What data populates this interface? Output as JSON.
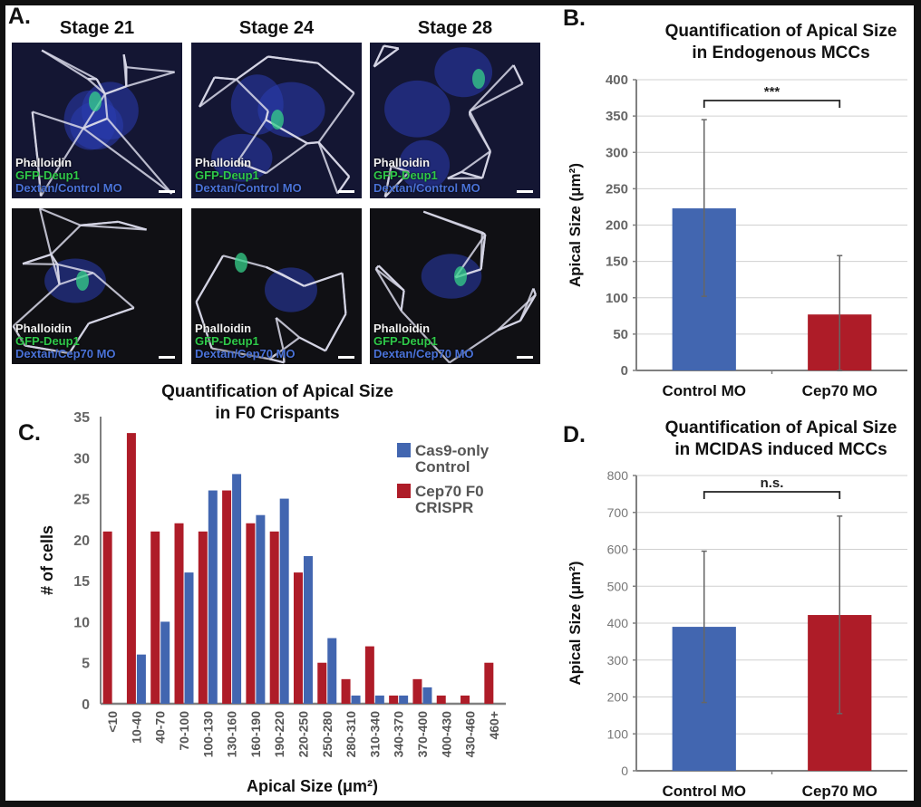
{
  "panels": {
    "A": {
      "letter": "A.",
      "stages": [
        "Stage 21",
        "Stage 24",
        "Stage 28"
      ],
      "rows": [
        {
          "condition": "Control",
          "labels": [
            "Phalloidin",
            "GFP-Deup1",
            "Dextan/Control MO"
          ]
        },
        {
          "condition": "Cep70",
          "labels": [
            "Phalloidin",
            "GFP-Deup1",
            "Dextan/Cep70 MO"
          ]
        }
      ],
      "channel_colors": {
        "phalloidin": "#f2f2f2",
        "gfp": "#2fc94a",
        "dextran": "#4a72d8"
      }
    },
    "B": {
      "letter": "B."
    },
    "C": {
      "letter": "C."
    },
    "D": {
      "letter": "D."
    }
  },
  "colors": {
    "control": "#4266b0",
    "cep70": "#ae1c28",
    "grid": "#d0d0d0",
    "axis": "#808080"
  },
  "chart_data": [
    {
      "id": "B",
      "type": "bar",
      "title": [
        "Quantification of Apical Size",
        "in Endogenous MCCs"
      ],
      "xlabel": "",
      "ylabel": "Apical Size (μm²)",
      "categories": [
        "Control MO",
        "Cep70 MO"
      ],
      "values": [
        223,
        77
      ],
      "error_upper": [
        345,
        158
      ],
      "error_lower": [
        102,
        0
      ],
      "ylim": [
        0,
        400
      ],
      "yticks": [
        0,
        50,
        100,
        150,
        200,
        250,
        300,
        350,
        400
      ],
      "grid": true,
      "significance": {
        "label": "***",
        "between": [
          "Control MO",
          "Cep70 MO"
        ]
      }
    },
    {
      "id": "C",
      "type": "bar",
      "title": [
        "Quantification of Apical Size",
        "in F0 Crispants"
      ],
      "xlabel": "Apical Size (μm²)",
      "ylabel": "# of cells",
      "categories": [
        "<10",
        "10-40",
        "40-70",
        "70-100",
        "100-130",
        "130-160",
        "160-190",
        "190-220",
        "220-250",
        "250-280",
        "280-310",
        "310-340",
        "340-370",
        "370-400",
        "400-430",
        "430-460",
        "460+"
      ],
      "series": [
        {
          "name": "Cep70 F0 CRISPR",
          "legend": [
            "Cep70 F0",
            "CRISPR"
          ],
          "color": "#ae1c28",
          "values": [
            21,
            33,
            21,
            22,
            21,
            26,
            22,
            21,
            16,
            5,
            3,
            7,
            1,
            3,
            1,
            1,
            5
          ]
        },
        {
          "name": "Cas9-only Control",
          "legend": [
            "Cas9-only",
            "Control"
          ],
          "color": "#4266b0",
          "values": [
            0,
            6,
            10,
            16,
            26,
            28,
            23,
            25,
            18,
            8,
            1,
            1,
            1,
            2,
            0,
            0,
            0
          ]
        }
      ],
      "ylim": [
        0,
        35
      ],
      "yticks": [
        0,
        5,
        10,
        15,
        20,
        25,
        30,
        35
      ],
      "grid": false,
      "legend_position": "top-right"
    },
    {
      "id": "D",
      "type": "bar",
      "title": [
        "Quantification of Apical Size",
        "in MCIDAS induced MCCs"
      ],
      "xlabel": "",
      "ylabel": "Apical Size (μm²)",
      "categories": [
        "Control MO",
        "Cep70 MO"
      ],
      "values": [
        390,
        422
      ],
      "error_upper": [
        595,
        690
      ],
      "error_lower": [
        185,
        155
      ],
      "ylim": [
        0,
        800
      ],
      "yticks": [
        0,
        100,
        200,
        300,
        400,
        500,
        600,
        700,
        800
      ],
      "grid": true,
      "significance": {
        "label": "n.s.",
        "between": [
          "Control MO",
          "Cep70 MO"
        ]
      }
    }
  ]
}
